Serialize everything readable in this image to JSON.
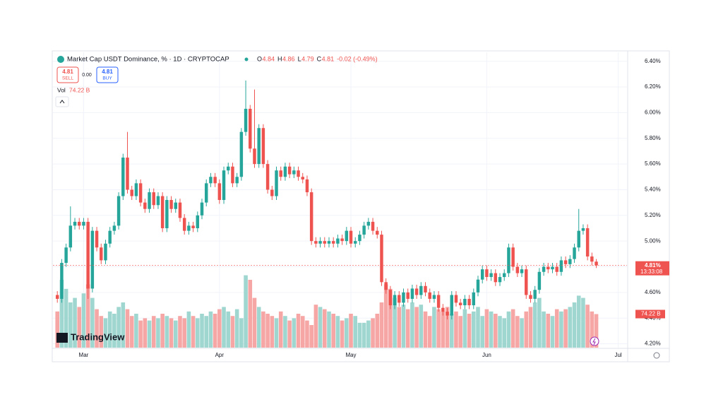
{
  "chart_data": {
    "type": "candlestick",
    "title": "Market Cap USDT Dominance, % · 1D · CRYPTOCAP",
    "ohlc_letters": [
      "O",
      "H",
      "L",
      "C"
    ],
    "change": "-0.02 (-0.49%)",
    "sell": {
      "price": 4.81,
      "label": "SELL"
    },
    "spread": "0.00",
    "buy": {
      "price": 4.81,
      "label": "BUY"
    },
    "volume_name": "Vol",
    "volume_label": "74.22 B",
    "last_label": "4.81%",
    "countdown": "13:33:08",
    "logo": "TradingView",
    "up_color": "#26a69a",
    "down_color": "#ef5350",
    "volume_up_color": "#9fd6d0",
    "volume_down_color": "#f5a6a5",
    "xlim": [
      -1,
      130
    ],
    "xticks": [
      {
        "value": 6,
        "label": "Mar"
      },
      {
        "value": 37,
        "label": "Apr"
      },
      {
        "value": 67,
        "label": "May"
      },
      {
        "value": 98,
        "label": "Jun"
      },
      {
        "value": 128,
        "label": "Jul"
      }
    ],
    "ylim": [
      4.17,
      6.47
    ],
    "yticks": [
      {
        "value": 6.4,
        "label": "6.40%"
      },
      {
        "value": 6.2,
        "label": "6.20%"
      },
      {
        "value": 6.0,
        "label": "6.00%"
      },
      {
        "value": 5.8,
        "label": "5.80%"
      },
      {
        "value": 5.6,
        "label": "5.60%"
      },
      {
        "value": 5.4,
        "label": "5.40%"
      },
      {
        "value": 5.2,
        "label": "5.20%"
      },
      {
        "value": 5.0,
        "label": "5.00%"
      },
      {
        "value": 4.8,
        "label": "4.80%"
      },
      {
        "value": 4.6,
        "label": "4.60%"
      },
      {
        "value": 4.4,
        "label": "4.40%"
      },
      {
        "value": 4.2,
        "label": "4.20%"
      }
    ],
    "vlim": [
      0,
      250
    ],
    "open": [
      4.58,
      4.55,
      4.83,
      4.95,
      5.12,
      5.15,
      5.12,
      5.15,
      4.63,
      5.08,
      4.95,
      4.85,
      4.98,
      5.08,
      5.12,
      5.35,
      5.65,
      5.4,
      5.35,
      5.45,
      5.3,
      5.25,
      5.38,
      5.28,
      5.35,
      5.1,
      5.32,
      5.25,
      5.3,
      5.18,
      5.08,
      5.12,
      5.1,
      5.2,
      5.3,
      5.45,
      5.5,
      5.45,
      5.32,
      5.55,
      5.58,
      5.45,
      5.5,
      5.85,
      6.03,
      5.72,
      5.6,
      5.88,
      5.6,
      5.4,
      5.35,
      5.55,
      5.5,
      5.58,
      5.52,
      5.55,
      5.5,
      5.48,
      5.38,
      5.0,
      4.98,
      5.0,
      4.98,
      5.0,
      4.98,
      5.02,
      5.0,
      5.08,
      4.98,
      5.0,
      5.05,
      5.12,
      5.15,
      5.08,
      5.05,
      4.68,
      4.62,
      4.5,
      4.58,
      4.52,
      4.6,
      4.55,
      4.63,
      4.58,
      4.65,
      4.6,
      4.55,
      4.58,
      4.48,
      4.45,
      4.42,
      4.58,
      4.52,
      4.5,
      4.55,
      4.5,
      4.6,
      4.7,
      4.78,
      4.72,
      4.75,
      4.68,
      4.72,
      4.75,
      4.95,
      4.8,
      4.75,
      4.78,
      4.58,
      4.55,
      4.62,
      4.76,
      4.8,
      4.78,
      4.8,
      4.76,
      4.85,
      4.82,
      4.86,
      4.95,
      5.08,
      5.1,
      4.88,
      4.84
    ],
    "high": [
      4.61,
      4.86,
      4.98,
      5.27,
      5.18,
      5.18,
      5.18,
      5.18,
      5.11,
      5.11,
      4.98,
      5.01,
      5.11,
      5.15,
      5.38,
      5.68,
      5.85,
      5.43,
      5.48,
      5.48,
      5.33,
      5.41,
      5.41,
      5.38,
      5.38,
      5.35,
      5.35,
      5.33,
      5.33,
      5.21,
      5.15,
      5.15,
      5.23,
      5.33,
      5.48,
      5.53,
      5.53,
      5.48,
      5.58,
      5.61,
      5.61,
      5.53,
      5.88,
      6.25,
      6.06,
      6.18,
      5.91,
      5.91,
      5.63,
      5.43,
      5.58,
      5.58,
      5.61,
      5.61,
      5.58,
      5.58,
      5.53,
      5.51,
      5.41,
      5.03,
      5.03,
      5.03,
      5.03,
      5.03,
      5.05,
      5.05,
      5.11,
      5.11,
      5.03,
      5.08,
      5.15,
      5.18,
      5.18,
      5.11,
      5.08,
      4.71,
      4.65,
      4.61,
      4.61,
      4.63,
      4.63,
      4.66,
      4.66,
      4.68,
      4.68,
      4.63,
      4.61,
      4.61,
      4.51,
      4.48,
      4.61,
      4.61,
      4.55,
      4.58,
      4.58,
      4.63,
      4.73,
      4.81,
      4.81,
      4.78,
      4.78,
      4.75,
      4.78,
      4.98,
      4.98,
      4.83,
      4.81,
      4.81,
      4.61,
      4.65,
      4.79,
      4.83,
      4.83,
      4.83,
      4.83,
      4.88,
      4.88,
      4.89,
      4.98,
      5.25,
      5.13,
      5.13,
      4.91,
      4.86
    ],
    "low": [
      4.52,
      4.52,
      4.8,
      4.92,
      5.09,
      5.09,
      5.09,
      4.55,
      4.6,
      4.92,
      4.82,
      4.82,
      4.95,
      5.05,
      5.09,
      5.32,
      5.37,
      5.32,
      5.32,
      5.27,
      5.22,
      5.22,
      5.25,
      5.25,
      5.07,
      5.07,
      5.22,
      5.22,
      5.15,
      5.05,
      5.05,
      5.07,
      5.07,
      5.17,
      5.27,
      5.42,
      5.42,
      5.29,
      5.29,
      5.52,
      5.42,
      5.42,
      5.47,
      5.82,
      5.69,
      5.57,
      5.57,
      5.57,
      5.37,
      5.32,
      5.32,
      5.47,
      5.47,
      5.49,
      5.49,
      5.47,
      5.45,
      5.35,
      4.97,
      4.95,
      4.95,
      4.95,
      4.95,
      4.95,
      4.95,
      4.97,
      4.97,
      4.95,
      4.95,
      4.97,
      5.02,
      5.09,
      5.05,
      5.02,
      4.65,
      4.59,
      4.47,
      4.47,
      4.49,
      4.49,
      4.52,
      4.52,
      4.55,
      4.55,
      4.57,
      4.52,
      4.52,
      4.45,
      4.42,
      4.39,
      4.39,
      4.49,
      4.47,
      4.47,
      4.47,
      4.47,
      4.57,
      4.67,
      4.69,
      4.69,
      4.65,
      4.65,
      4.69,
      4.72,
      4.77,
      4.72,
      4.72,
      4.55,
      4.52,
      4.52,
      4.59,
      4.73,
      4.75,
      4.75,
      4.73,
      4.73,
      4.79,
      4.79,
      4.83,
      4.92,
      5.05,
      4.85,
      4.81,
      4.79
    ],
    "close": [
      4.55,
      4.83,
      4.95,
      5.12,
      5.15,
      5.12,
      5.15,
      4.63,
      5.08,
      4.95,
      4.85,
      4.98,
      5.08,
      5.12,
      5.35,
      5.65,
      5.4,
      5.35,
      5.45,
      5.3,
      5.25,
      5.38,
      5.28,
      5.35,
      5.1,
      5.32,
      5.25,
      5.3,
      5.18,
      5.08,
      5.12,
      5.1,
      5.2,
      5.3,
      5.45,
      5.5,
      5.45,
      5.32,
      5.55,
      5.58,
      5.45,
      5.5,
      5.85,
      6.03,
      5.72,
      5.6,
      5.88,
      5.6,
      5.4,
      5.35,
      5.55,
      5.5,
      5.58,
      5.52,
      5.55,
      5.5,
      5.48,
      5.38,
      5.0,
      4.98,
      5.0,
      4.98,
      5.0,
      4.98,
      5.02,
      5.0,
      5.08,
      4.98,
      5.0,
      5.05,
      5.12,
      5.15,
      5.08,
      5.05,
      4.68,
      4.62,
      4.5,
      4.58,
      4.52,
      4.6,
      4.55,
      4.63,
      4.58,
      4.65,
      4.6,
      4.55,
      4.58,
      4.48,
      4.45,
      4.42,
      4.58,
      4.52,
      4.5,
      4.55,
      4.5,
      4.6,
      4.7,
      4.78,
      4.72,
      4.75,
      4.68,
      4.72,
      4.75,
      4.95,
      4.8,
      4.75,
      4.78,
      4.58,
      4.55,
      4.62,
      4.76,
      4.8,
      4.78,
      4.8,
      4.76,
      4.85,
      4.82,
      4.86,
      4.95,
      5.08,
      5.1,
      4.88,
      4.84,
      4.81
    ],
    "volume": [
      80,
      150,
      130,
      100,
      110,
      90,
      120,
      140,
      110,
      85,
      70,
      65,
      80,
      75,
      90,
      100,
      85,
      70,
      75,
      60,
      65,
      60,
      70,
      65,
      75,
      70,
      65,
      60,
      70,
      65,
      80,
      70,
      65,
      75,
      70,
      80,
      75,
      85,
      90,
      80,
      70,
      85,
      65,
      160,
      150,
      110,
      90,
      80,
      75,
      70,
      65,
      80,
      70,
      60,
      65,
      75,
      70,
      60,
      50,
      95,
      90,
      85,
      80,
      75,
      70,
      60,
      65,
      75,
      70,
      55,
      55,
      60,
      65,
      75,
      100,
      140,
      130,
      110,
      90,
      95,
      85,
      100,
      90,
      95,
      80,
      70,
      90,
      85,
      80,
      90,
      75,
      80,
      70,
      85,
      75,
      80,
      90,
      70,
      85,
      80,
      75,
      70,
      65,
      80,
      85,
      70,
      65,
      80,
      90,
      100,
      110,
      80,
      75,
      70,
      85,
      80,
      85,
      90,
      100,
      115,
      110,
      95,
      80,
      74.22
    ]
  }
}
